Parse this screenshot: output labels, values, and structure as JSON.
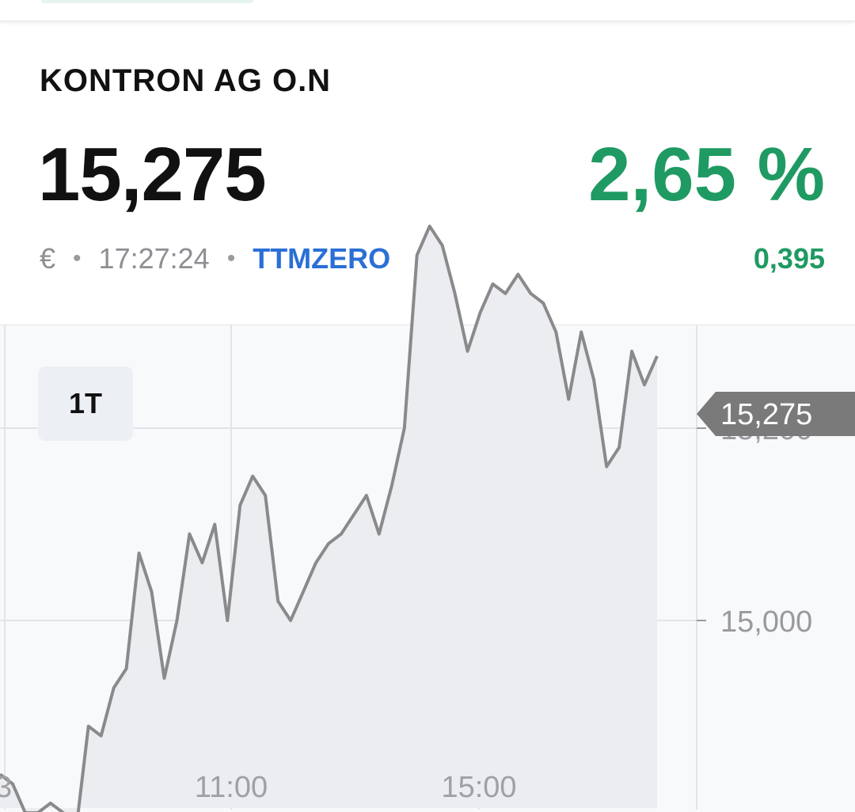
{
  "header": {
    "title": "KONTRON AG O.N",
    "price": "15,275",
    "change_pct": "2,65 %",
    "change_abs": "0,395",
    "currency": "€",
    "time": "17:27:24",
    "venue": "TTMZERO",
    "separator": "•"
  },
  "colors": {
    "positive": "#1f9a62",
    "venue_link": "#2a6fd6",
    "line": "#8a8a8c",
    "area": "#ebedf0",
    "price_tag": "#7a7a7a"
  },
  "range": {
    "selected": "1T"
  },
  "chart_data": {
    "type": "area",
    "x_ticks": [
      "3",
      "11:00",
      "15:00"
    ],
    "y_ticks": [
      "15,000",
      "15,200"
    ],
    "current_value_label": "15,275",
    "ylim": [
      14.6,
      15.45
    ],
    "series": [
      {
        "values": [
          14.84,
          14.83,
          14.8,
          14.8,
          14.81,
          14.8,
          14.78,
          14.89,
          14.88,
          14.93,
          14.95,
          15.07,
          15.03,
          14.94,
          15.0,
          15.09,
          15.06,
          15.1,
          15.0,
          15.12,
          15.15,
          15.13,
          15.02,
          15.0,
          15.03,
          15.06,
          15.08,
          15.09,
          15.11,
          15.13,
          15.09,
          15.14,
          15.2,
          15.38,
          15.41,
          15.39,
          15.34,
          15.28,
          15.32,
          15.35,
          15.34,
          15.36,
          15.34,
          15.33,
          15.3,
          15.23,
          15.3,
          15.25,
          15.16,
          15.18,
          15.28,
          15.245,
          15.275
        ]
      }
    ]
  }
}
